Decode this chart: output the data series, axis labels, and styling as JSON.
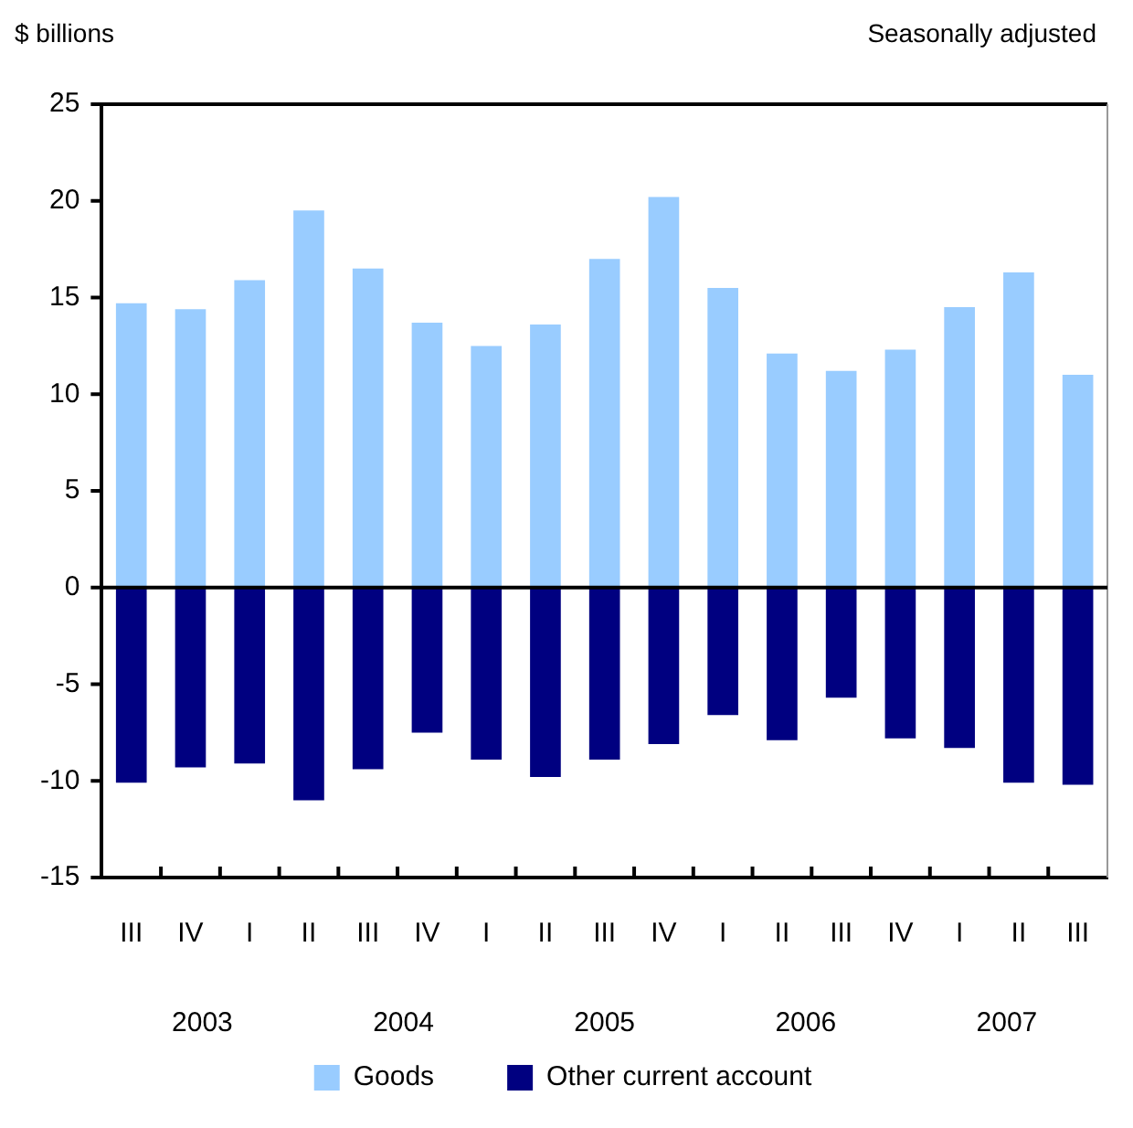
{
  "chart_data": {
    "type": "bar",
    "subtitle": "Seasonally adjusted",
    "ylabel": "$ billions",
    "categories": [
      "III",
      "IV",
      "I",
      "II",
      "III",
      "IV",
      "I",
      "II",
      "III",
      "IV",
      "I",
      "II",
      "III",
      "IV",
      "I",
      "II",
      "III"
    ],
    "series": [
      {
        "name": "Goods",
        "color": "#99ccff",
        "values": [
          14.7,
          14.4,
          15.9,
          19.5,
          16.5,
          13.7,
          12.5,
          13.6,
          17.0,
          20.2,
          15.5,
          12.1,
          11.2,
          12.3,
          14.5,
          16.3,
          11.0
        ]
      },
      {
        "name": "Other current account",
        "color": "#000080",
        "values": [
          -10.1,
          -9.3,
          -9.1,
          -11.0,
          -9.4,
          -7.5,
          -8.9,
          -9.8,
          -8.9,
          -8.1,
          -6.6,
          -7.9,
          -5.7,
          -7.8,
          -8.3,
          -10.1,
          -10.2
        ]
      }
    ],
    "stacked": true,
    "ylim": [
      -15,
      25
    ],
    "yticks": [
      -15,
      -10,
      -5,
      0,
      5,
      10,
      15,
      20,
      25
    ],
    "legend": "bottom",
    "annotations": [
      "2003",
      "2004",
      "2005",
      "2006",
      "2007"
    ]
  }
}
